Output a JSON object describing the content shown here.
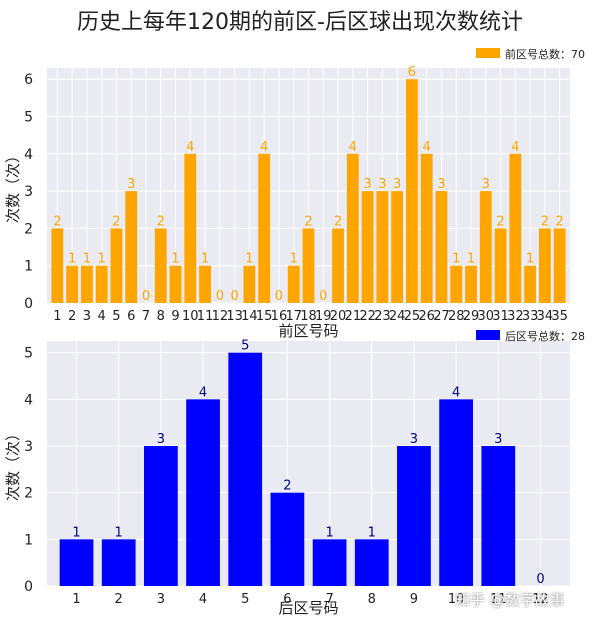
{
  "title": "历史上每年120期的前区-后区球出现次数统计",
  "watermark": "知乎 @数字故事",
  "chart_data": [
    {
      "type": "bar",
      "xlabel": "前区号码",
      "ylabel": "次数（次）",
      "ylim": [
        0,
        6.3
      ],
      "yticks": [
        0,
        1,
        2,
        3,
        4,
        5,
        6
      ],
      "grid": true,
      "legend_position": "top-right",
      "bar_color": "#FFA500",
      "label_color": "#FFA500",
      "categories": [
        "1",
        "2",
        "3",
        "4",
        "5",
        "6",
        "7",
        "8",
        "9",
        "10",
        "11",
        "12",
        "13",
        "14",
        "15",
        "16",
        "17",
        "18",
        "19",
        "20",
        "21",
        "22",
        "23",
        "24",
        "25",
        "26",
        "27",
        "28",
        "29",
        "30",
        "31",
        "32",
        "33",
        "34",
        "35"
      ],
      "series": [
        {
          "name": "前区号总数：70",
          "values": [
            2,
            1,
            1,
            1,
            2,
            3,
            0,
            2,
            1,
            4,
            1,
            0,
            0,
            1,
            4,
            0,
            1,
            2,
            0,
            2,
            4,
            3,
            3,
            3,
            6,
            4,
            3,
            1,
            1,
            3,
            2,
            4,
            1,
            2,
            2
          ]
        }
      ]
    },
    {
      "type": "bar",
      "xlabel": "后区号码",
      "ylabel": "次数（次）",
      "ylim": [
        0,
        5.25
      ],
      "yticks": [
        0,
        1,
        2,
        3,
        4,
        5
      ],
      "grid": true,
      "legend_position": "top-right",
      "bar_color": "#0000FF",
      "label_color": "#00008B",
      "categories": [
        "1",
        "2",
        "3",
        "4",
        "5",
        "6",
        "7",
        "8",
        "9",
        "10",
        "11",
        "12"
      ],
      "series": [
        {
          "name": "后区号总数：28",
          "values": [
            1,
            1,
            3,
            4,
            5,
            2,
            1,
            1,
            3,
            4,
            3,
            0
          ]
        }
      ]
    }
  ]
}
